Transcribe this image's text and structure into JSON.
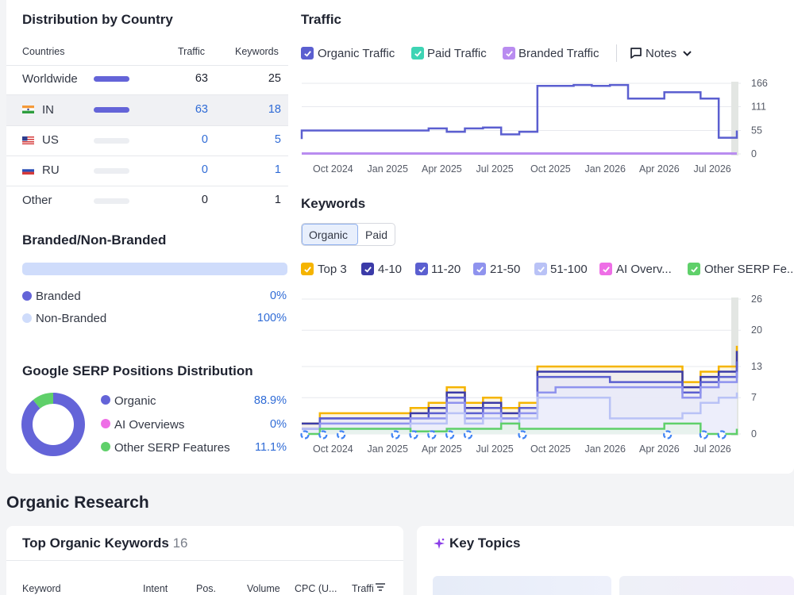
{
  "country": {
    "title": "Distribution by Country",
    "headers": {
      "countries": "Countries",
      "traffic": "Traffic",
      "keywords": "Keywords"
    },
    "rows": [
      {
        "name": "Worldwide",
        "traffic": "63",
        "keywords": "25",
        "share": 1.0,
        "flag": ""
      },
      {
        "name": "IN",
        "traffic": "63",
        "keywords": "18",
        "share": 1.0,
        "flag": "india-flag-icon"
      },
      {
        "name": "US",
        "traffic": "0",
        "keywords": "5",
        "share": 0,
        "flag": "usa-flag-icon"
      },
      {
        "name": "RU",
        "traffic": "0",
        "keywords": "1",
        "share": 0,
        "flag": "russia-flag-icon"
      },
      {
        "name": "Other",
        "traffic": "0",
        "keywords": "1",
        "share": 0,
        "flag": ""
      }
    ]
  },
  "branded": {
    "title": "Branded/Non-Branded",
    "branded_fraction": 0,
    "items": [
      {
        "label": "Branded",
        "value": "0%",
        "color": "#6464d8"
      },
      {
        "label": "Non-Branded",
        "value": "100%",
        "color": "#cfdcfb"
      }
    ]
  },
  "serp": {
    "title": "Google SERP Positions Distribution",
    "items": [
      {
        "label": "Organic",
        "value": "88.9%",
        "color": "#6464d8",
        "fraction": 0.889
      },
      {
        "label": "AI Overviews",
        "value": "0%",
        "color": "#ee6ee6",
        "fraction": 0
      },
      {
        "label": "Other SERP Features",
        "value": "11.1%",
        "color": "#5fd06a",
        "fraction": 0.111
      }
    ]
  },
  "traffic": {
    "title": "Traffic",
    "legend": [
      {
        "label": "Organic Traffic",
        "color": "#5b5fd0",
        "icon": "checkbox-checked-icon"
      },
      {
        "label": "Paid Traffic",
        "color": "#3ed4b4",
        "icon": "checkbox-checked-icon"
      },
      {
        "label": "Branded Traffic",
        "color": "#b98cf0",
        "icon": "checkbox-checked-icon"
      }
    ],
    "notes_label": "Notes",
    "chart_data": {
      "type": "line",
      "x_ticks": [
        "Oct 2024",
        "Jan 2025",
        "Apr 2025",
        "Jul 2025",
        "Oct 2025",
        "Jan 2026",
        "Apr 2026",
        "Jul 2026"
      ],
      "y_ticks": [
        "166",
        "111",
        "55",
        "0"
      ],
      "ylim": [
        0,
        166
      ],
      "xlim": [
        "2024-08",
        "2026-08"
      ],
      "series": [
        {
          "name": "Organic Traffic",
          "color": "#5b5fd0",
          "x": [
            "2024-08",
            "2024-08",
            "2025-01",
            "2025-03",
            "2025-04",
            "2025-05",
            "2025-06",
            "2025-07",
            "2025-08",
            "2025-09",
            "2025-10",
            "2025-11",
            "2025-12",
            "2026-01",
            "2026-02",
            "2026-03",
            "2026-04",
            "2026-05",
            "2026-06",
            "2026-07",
            "2026-08"
          ],
          "y": [
            35,
            55,
            55,
            60,
            52,
            60,
            62,
            46,
            52,
            160,
            160,
            162,
            160,
            162,
            130,
            130,
            145,
            145,
            130,
            38,
            55
          ]
        },
        {
          "name": "Branded Traffic",
          "color": "#b98cf0",
          "x": [
            "2024-08",
            "2026-08"
          ],
          "y": [
            1,
            1
          ]
        }
      ]
    }
  },
  "keywords": {
    "title": "Keywords",
    "tabs": [
      {
        "label": "Organic",
        "active": true
      },
      {
        "label": "Paid",
        "active": false
      }
    ],
    "legend": [
      {
        "label": "Top 3",
        "color": "#f5b400"
      },
      {
        "label": "4-10",
        "color": "#3b3ba8"
      },
      {
        "label": "11-20",
        "color": "#5b5fd0"
      },
      {
        "label": "21-50",
        "color": "#8f93ee"
      },
      {
        "label": "51-100",
        "color": "#b9c2f6"
      },
      {
        "label": "AI Overv...",
        "color": "#ee6ee6"
      },
      {
        "label": "Other SERP Fe...",
        "color": "#5fd06a"
      }
    ],
    "chart_data": {
      "type": "area",
      "x_ticks": [
        "Oct 2024",
        "Jan 2025",
        "Apr 2025",
        "Jul 2025",
        "Oct 2025",
        "Jan 2026",
        "Apr 2026",
        "Jul 2026"
      ],
      "y_ticks": [
        "26",
        "20",
        "13",
        "7",
        "0"
      ],
      "ylim": [
        0,
        26
      ],
      "xlim": [
        "2024-08",
        "2026-08"
      ],
      "series": [
        {
          "name": "Top 3",
          "color": "#f5b400",
          "x": [
            "2024-08",
            "2024-09",
            "2024-12",
            "2025-02",
            "2025-03",
            "2025-04",
            "2025-05",
            "2025-06",
            "2025-07",
            "2025-08",
            "2025-09",
            "2025-10",
            "2026-01",
            "2026-04",
            "2026-05",
            "2026-06",
            "2026-07",
            "2026-08"
          ],
          "y": [
            2,
            4,
            4,
            5,
            6,
            9,
            6,
            7,
            5,
            6,
            13,
            13,
            13,
            13,
            10,
            12,
            13,
            17
          ]
        },
        {
          "name": "4-10",
          "color": "#3b3ba8",
          "x": [
            "2024-08",
            "2024-09",
            "2024-12",
            "2025-02",
            "2025-03",
            "2025-04",
            "2025-05",
            "2025-06",
            "2025-07",
            "2025-08",
            "2025-09",
            "2025-10",
            "2026-01",
            "2026-04",
            "2026-05",
            "2026-06",
            "2026-07",
            "2026-08"
          ],
          "y": [
            2,
            3,
            3,
            4,
            5,
            8,
            5,
            6,
            4,
            5,
            12,
            12,
            12,
            12,
            9,
            11,
            12,
            16
          ]
        },
        {
          "name": "11-20",
          "color": "#5b5fd0",
          "x": [
            "2024-08",
            "2024-09",
            "2024-12",
            "2025-02",
            "2025-03",
            "2025-04",
            "2025-05",
            "2025-06",
            "2025-07",
            "2025-08",
            "2025-09",
            "2025-10",
            "2026-01",
            "2026-04",
            "2026-05",
            "2026-06",
            "2026-07",
            "2026-08"
          ],
          "y": [
            1,
            3,
            3,
            3,
            4,
            7,
            4,
            5,
            3,
            5,
            11,
            11,
            10,
            10,
            8,
            10,
            11,
            14
          ]
        },
        {
          "name": "21-50",
          "color": "#8f93ee",
          "x": [
            "2024-08",
            "2024-09",
            "2024-12",
            "2025-02",
            "2025-03",
            "2025-04",
            "2025-05",
            "2025-06",
            "2025-07",
            "2025-08",
            "2025-09",
            "2025-10",
            "2026-01",
            "2026-04",
            "2026-05",
            "2026-06",
            "2026-07",
            "2026-08"
          ],
          "y": [
            1,
            2,
            2,
            3,
            3,
            6,
            3,
            4,
            3,
            4,
            8,
            9,
            9,
            9,
            7,
            9,
            10,
            12
          ]
        },
        {
          "name": "51-100",
          "color": "#b9c2f6",
          "x": [
            "2024-08",
            "2024-09",
            "2024-12",
            "2025-02",
            "2025-03",
            "2025-04",
            "2025-05",
            "2025-06",
            "2025-07",
            "2025-08",
            "2025-09",
            "2025-10",
            "2026-01",
            "2026-04",
            "2026-05",
            "2026-06",
            "2026-07",
            "2026-08"
          ],
          "y": [
            1,
            1,
            1,
            2,
            2,
            4,
            2,
            3,
            2,
            3,
            7,
            7,
            3,
            3,
            4,
            6,
            7,
            8
          ]
        },
        {
          "name": "Other SERP Features",
          "color": "#5fd06a",
          "x": [
            "2024-08",
            "2024-09",
            "2024-12",
            "2025-02",
            "2025-04",
            "2025-07",
            "2025-08",
            "2025-12",
            "2026-04",
            "2026-05",
            "2026-06",
            "2026-08"
          ],
          "y": [
            0,
            1,
            1,
            0.5,
            1,
            2,
            1,
            1,
            2,
            2,
            0,
            1
          ]
        }
      ]
    },
    "google_update_markers": [
      "2024-08",
      "2024-09",
      "2024-10",
      "2025-01",
      "2025-02",
      "2025-03",
      "2025-04",
      "2025-05",
      "2025-08",
      "2026-04",
      "2026-06",
      "2026-07"
    ]
  },
  "organic_research": {
    "title": "Organic Research",
    "top_keywords": {
      "title": "Top Organic Keywords",
      "count": "16",
      "columns": [
        "Keyword",
        "Intent",
        "Pos.",
        "Volume",
        "CPC (U...",
        "Traffi"
      ]
    },
    "key_topics": {
      "title": "Key Topics",
      "icon": "sparkle-icon"
    }
  }
}
